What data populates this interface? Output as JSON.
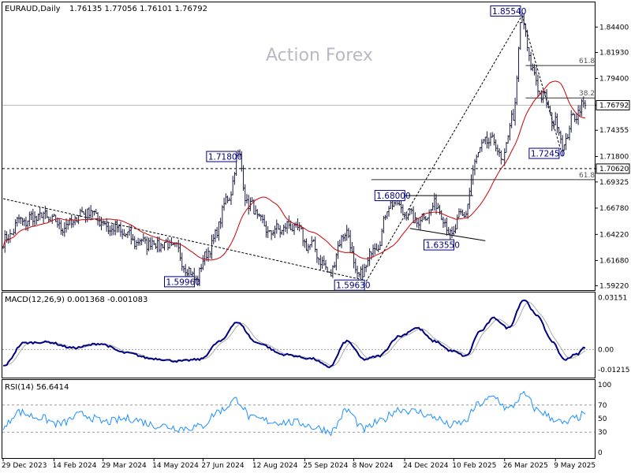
{
  "header": {
    "symbol": "EURAUD,Daily",
    "ohlc": "1.76135 1.77056 1.76101 1.76792"
  },
  "watermark": "Action Forex",
  "colors": {
    "candles": "#1a1a40",
    "ma": "#cc0000",
    "macd": "#000080",
    "signal": "#aaaaaa",
    "rsi": "#1e90ff",
    "fib": "#333333",
    "grid": "#000000"
  },
  "chart_data": [
    {
      "type": "candlestick",
      "title": "EURAUD,Daily",
      "ylim": [
        1.588,
        1.868
      ],
      "y_ticks": [
        "1.84400",
        "1.81930",
        "1.79400",
        "1.76792",
        "1.74355",
        "1.71800",
        "1.70620",
        "1.69325",
        "1.66780",
        "1.64220",
        "1.61680",
        "1.59220"
      ],
      "x_ticks": [
        "29 Dec 2023",
        "14 Feb 2024",
        "29 Mar 2024",
        "14 May 2024",
        "27 Jun 2024",
        "12 Aug 2024",
        "25 Sep 2024",
        "8 Nov 2024",
        "24 Dec 2024",
        "10 Feb 2025",
        "26 Mar 2025",
        "9 May 2025"
      ],
      "last_price": "1.76792",
      "level_line": "1.70620",
      "anchors": [
        {
          "i": 0,
          "v": 1.635
        },
        {
          "i": 10,
          "v": 1.655
        },
        {
          "i": 22,
          "v": 1.66
        },
        {
          "i": 35,
          "v": 1.65
        },
        {
          "i": 48,
          "v": 1.665
        },
        {
          "i": 62,
          "v": 1.648
        },
        {
          "i": 78,
          "v": 1.635
        },
        {
          "i": 95,
          "v": 1.632
        },
        {
          "i": 110,
          "v": 1.6
        },
        {
          "i": 118,
          "v": 1.63
        },
        {
          "i": 128,
          "v": 1.675
        },
        {
          "i": 134,
          "v": 1.718
        },
        {
          "i": 140,
          "v": 1.67
        },
        {
          "i": 152,
          "v": 1.645
        },
        {
          "i": 165,
          "v": 1.65
        },
        {
          "i": 176,
          "v": 1.63
        },
        {
          "i": 186,
          "v": 1.605
        },
        {
          "i": 195,
          "v": 1.645
        },
        {
          "i": 203,
          "v": 1.6
        },
        {
          "i": 212,
          "v": 1.63
        },
        {
          "i": 222,
          "v": 1.675
        },
        {
          "i": 228,
          "v": 1.665
        },
        {
          "i": 236,
          "v": 1.656
        },
        {
          "i": 248,
          "v": 1.67
        },
        {
          "i": 255,
          "v": 1.642
        },
        {
          "i": 262,
          "v": 1.66
        },
        {
          "i": 272,
          "v": 1.725
        },
        {
          "i": 278,
          "v": 1.735
        },
        {
          "i": 285,
          "v": 1.715
        },
        {
          "i": 291,
          "v": 1.76
        },
        {
          "i": 296,
          "v": 1.852
        },
        {
          "i": 302,
          "v": 1.8
        },
        {
          "i": 308,
          "v": 1.775
        },
        {
          "i": 315,
          "v": 1.75
        },
        {
          "i": 320,
          "v": 1.73
        },
        {
          "i": 326,
          "v": 1.76
        },
        {
          "i": 332,
          "v": 1.7679
        }
      ],
      "labels": [
        {
          "text": "1.85540",
          "i": 296,
          "v": 1.8554,
          "side": "left",
          "pos": "above"
        },
        {
          "text": "1.71800",
          "i": 134,
          "v": 1.718,
          "side": "left",
          "pos": "at"
        },
        {
          "text": "1.68000",
          "i": 230,
          "v": 1.68,
          "side": "left",
          "pos": "at"
        },
        {
          "text": "1.63550",
          "i": 258,
          "v": 1.6355,
          "side": "left",
          "pos": "below"
        },
        {
          "text": "1.59960",
          "i": 110,
          "v": 1.5996,
          "side": "left",
          "pos": "below"
        },
        {
          "text": "1.59630",
          "i": 207,
          "v": 1.5963,
          "side": "left",
          "pos": "below"
        },
        {
          "text": "1.72450",
          "i": 318,
          "v": 1.7245,
          "side": "left",
          "pos": "below"
        }
      ],
      "fib_lines": [
        {
          "text": "61.8",
          "v": 1.8065,
          "i_from": 298
        },
        {
          "text": "38.2",
          "v": 1.775,
          "i_from": 298
        },
        {
          "text": "61.8",
          "v": 1.6955,
          "i_from": 210
        }
      ]
    },
    {
      "type": "line",
      "title": "MACD(12,26,9) 0.001368 -0.001083",
      "ylim": [
        -0.017,
        0.0345
      ],
      "y_ticks": [
        "0.03151",
        "0.00",
        "-0.01215"
      ],
      "anchors": [
        {
          "i": 0,
          "v": -0.01
        },
        {
          "i": 12,
          "v": 0.004
        },
        {
          "i": 25,
          "v": 0.0045
        },
        {
          "i": 40,
          "v": 0.001
        },
        {
          "i": 55,
          "v": 0.0035
        },
        {
          "i": 70,
          "v": -0.002
        },
        {
          "i": 85,
          "v": -0.0055
        },
        {
          "i": 100,
          "v": -0.007
        },
        {
          "i": 112,
          "v": -0.006
        },
        {
          "i": 124,
          "v": 0.005
        },
        {
          "i": 133,
          "v": 0.0165
        },
        {
          "i": 145,
          "v": 0.004
        },
        {
          "i": 160,
          "v": -0.003
        },
        {
          "i": 176,
          "v": -0.0055
        },
        {
          "i": 186,
          "v": -0.0105
        },
        {
          "i": 196,
          "v": 0.005
        },
        {
          "i": 206,
          "v": -0.006
        },
        {
          "i": 214,
          "v": -0.004
        },
        {
          "i": 226,
          "v": 0.008
        },
        {
          "i": 236,
          "v": 0.013
        },
        {
          "i": 246,
          "v": 0.005
        },
        {
          "i": 256,
          "v": -0.001
        },
        {
          "i": 264,
          "v": -0.004
        },
        {
          "i": 272,
          "v": 0.011
        },
        {
          "i": 280,
          "v": 0.019
        },
        {
          "i": 288,
          "v": 0.013
        },
        {
          "i": 297,
          "v": 0.03
        },
        {
          "i": 305,
          "v": 0.02
        },
        {
          "i": 313,
          "v": 0.005
        },
        {
          "i": 320,
          "v": -0.006
        },
        {
          "i": 327,
          "v": -0.003
        },
        {
          "i": 332,
          "v": 0.0014
        }
      ],
      "signal_lag": 5
    },
    {
      "type": "line",
      "title": "RSI(14) 56.6414",
      "ylim": [
        0,
        100
      ],
      "y_ticks": [
        "100",
        "70",
        "50",
        "30",
        "0"
      ],
      "dashed_levels": [
        70,
        30
      ],
      "anchors": [
        {
          "i": 0,
          "v": 35
        },
        {
          "i": 8,
          "v": 60
        },
        {
          "i": 20,
          "v": 52
        },
        {
          "i": 32,
          "v": 42
        },
        {
          "i": 45,
          "v": 56
        },
        {
          "i": 58,
          "v": 45
        },
        {
          "i": 72,
          "v": 50
        },
        {
          "i": 88,
          "v": 40
        },
        {
          "i": 102,
          "v": 36
        },
        {
          "i": 112,
          "v": 38
        },
        {
          "i": 124,
          "v": 62
        },
        {
          "i": 133,
          "v": 78
        },
        {
          "i": 142,
          "v": 50
        },
        {
          "i": 156,
          "v": 45
        },
        {
          "i": 168,
          "v": 44
        },
        {
          "i": 180,
          "v": 36
        },
        {
          "i": 187,
          "v": 31
        },
        {
          "i": 196,
          "v": 62
        },
        {
          "i": 206,
          "v": 34
        },
        {
          "i": 214,
          "v": 45
        },
        {
          "i": 226,
          "v": 64
        },
        {
          "i": 236,
          "v": 60
        },
        {
          "i": 246,
          "v": 52
        },
        {
          "i": 255,
          "v": 40
        },
        {
          "i": 262,
          "v": 44
        },
        {
          "i": 272,
          "v": 72
        },
        {
          "i": 280,
          "v": 82
        },
        {
          "i": 288,
          "v": 64
        },
        {
          "i": 297,
          "v": 85
        },
        {
          "i": 305,
          "v": 62
        },
        {
          "i": 314,
          "v": 50
        },
        {
          "i": 320,
          "v": 42
        },
        {
          "i": 326,
          "v": 50
        },
        {
          "i": 332,
          "v": 56.6
        }
      ]
    }
  ]
}
